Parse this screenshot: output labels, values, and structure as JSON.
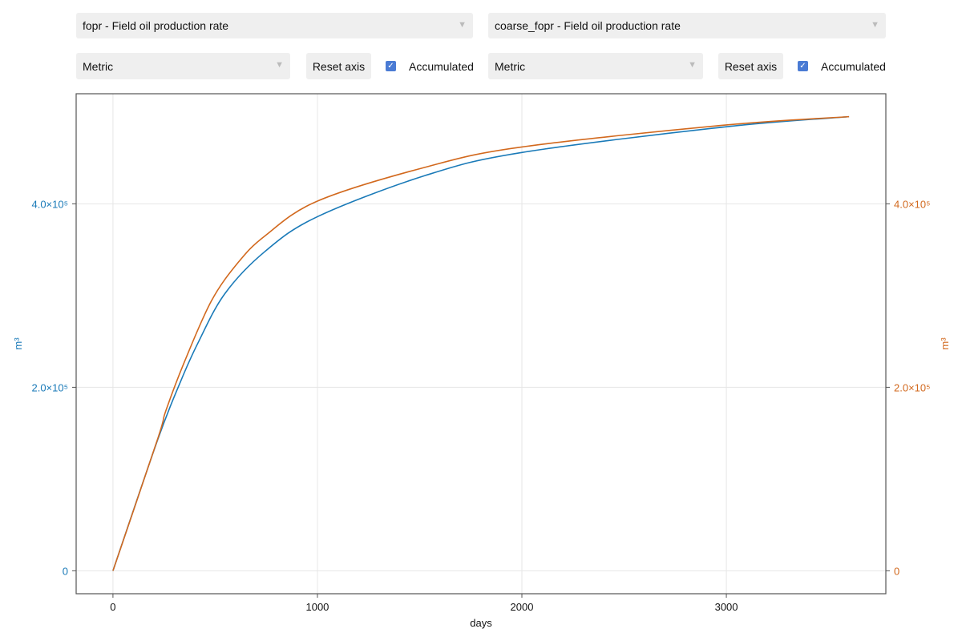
{
  "controls": {
    "left": {
      "variable": "fopr - Field oil production rate",
      "units": "Metric",
      "reset_label": "Reset axis",
      "accumulated_label": "Accumulated",
      "accumulated_checked": true
    },
    "right": {
      "variable": "coarse_fopr - Field oil production rate",
      "units": "Metric",
      "reset_label": "Reset axis",
      "accumulated_label": "Accumulated",
      "accumulated_checked": true
    },
    "dropdown_icon": "triangle-down-icon",
    "check_icon": "✓"
  },
  "chart_data": {
    "type": "line",
    "xlabel": "days",
    "ylabel_left": "m³",
    "ylabel_right": "m³",
    "xlim": [
      -180,
      3780
    ],
    "ylim": [
      -25000,
      520000
    ],
    "grid": true,
    "x_ticks": [
      {
        "v": 0,
        "label": "0"
      },
      {
        "v": 1000,
        "label": "1000"
      },
      {
        "v": 2000,
        "label": "2000"
      },
      {
        "v": 3000,
        "label": "3000"
      }
    ],
    "y_ticks": [
      {
        "v": 0,
        "label": "0"
      },
      {
        "v": 200000,
        "label": "2.0×10⁵"
      },
      {
        "v": 400000,
        "label": "4.0×10⁵"
      }
    ],
    "series": [
      {
        "axis": "left",
        "color": "#1a7ab8",
        "x": [
          0,
          219,
          330,
          415,
          547,
          743,
          1000,
          1529,
          2000,
          3000,
          3600
        ],
        "y": [
          0,
          143000,
          206000,
          248000,
          302000,
          348000,
          386000,
          431000,
          456000,
          484000,
          495000
        ]
      },
      {
        "axis": "right",
        "color": "#d2691e",
        "x": [
          0,
          219,
          258,
          350,
          481,
          612,
          743,
          1000,
          1529,
          2000,
          3000,
          3600
        ],
        "y": [
          0,
          144000,
          174000,
          228000,
          294000,
          336000,
          365000,
          403000,
          440000,
          462000,
          486000,
          495000
        ]
      }
    ]
  }
}
